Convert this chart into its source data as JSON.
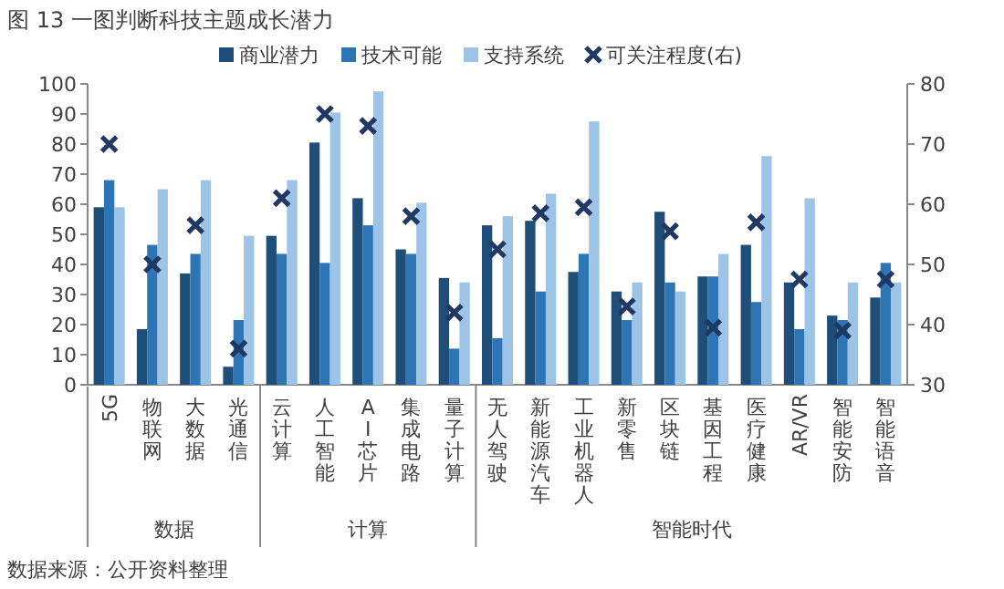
{
  "chart_data": {
    "type": "bar",
    "title": "图 13 一图判断科技主题成长潜力",
    "categories": [
      "5G",
      "物联网",
      "大数据",
      "光通信",
      "云计算",
      "人工智能",
      "AI芯片",
      "集成电路",
      "量子计算",
      "无人驾驶",
      "新能源汽车",
      "工业机器人",
      "新零售",
      "区块链",
      "基因工程",
      "医疗健康",
      "AR/VR",
      "智能安防",
      "智能语音"
    ],
    "series": [
      {
        "name": "商业潜力",
        "color": "#1f4e79",
        "values": [
          59,
          18.5,
          37,
          6,
          49.5,
          80.5,
          62,
          45,
          35.5,
          53,
          54.5,
          37.5,
          31,
          57.5,
          36,
          46.5,
          34,
          23,
          29
        ]
      },
      {
        "name": "技术可能",
        "color": "#2e75b6",
        "values": [
          68,
          46.5,
          43.5,
          21.5,
          43.5,
          40.5,
          53,
          43.5,
          12,
          15.5,
          31,
          43.5,
          21.5,
          34,
          36,
          27.5,
          18.5,
          21.5,
          40.5
        ]
      },
      {
        "name": "支持系统",
        "color": "#9dc3e6",
        "values": [
          59,
          65,
          68,
          49.5,
          68,
          90.5,
          97.5,
          60.5,
          34,
          56,
          63.5,
          87.5,
          34,
          31,
          43.5,
          76,
          62,
          34,
          34
        ]
      },
      {
        "name": "可关注程度(右)",
        "type": "scatter",
        "axis": "y2",
        "color": "#1f3864",
        "marker": "cross",
        "values": [
          70,
          50,
          56.5,
          36,
          61,
          75,
          73,
          58,
          42,
          52.5,
          58.5,
          59.5,
          43,
          55.5,
          39.5,
          57,
          47.5,
          39,
          47.5
        ]
      }
    ],
    "ylim": [
      0,
      100
    ],
    "yticks": [
      0,
      10,
      20,
      30,
      40,
      50,
      60,
      70,
      80,
      90,
      100
    ],
    "y2lim": [
      30,
      80
    ],
    "y2ticks": [
      30,
      40,
      50,
      60,
      70,
      80
    ],
    "legend": "top",
    "annotations": [
      "数据",
      "计算",
      "智能时代",
      "数据来源：公开资料整理"
    ]
  }
}
